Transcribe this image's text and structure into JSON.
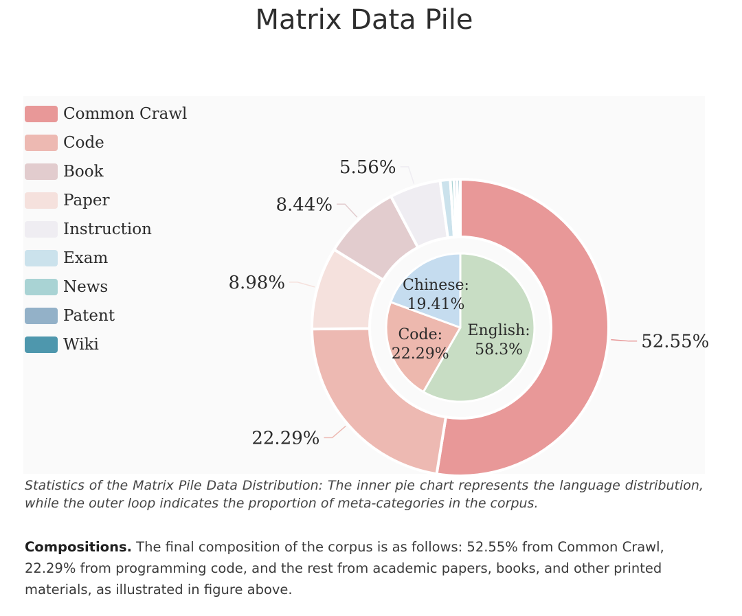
{
  "title": "Matrix Data Pile",
  "chart_data": {
    "type": "pie",
    "outer": {
      "slices": [
        {
          "label": "Common Crawl",
          "value": 52.55,
          "color": "#e89898",
          "display": "52.55%"
        },
        {
          "label": "Code",
          "value": 22.29,
          "color": "#edb9b2",
          "display": "22.29%"
        },
        {
          "label": "Paper",
          "value": 8.98,
          "color": "#f5e1dd",
          "display": "8.98%"
        },
        {
          "label": "Book",
          "value": 8.44,
          "color": "#e2ccce",
          "display": "8.44%"
        },
        {
          "label": "Instruction",
          "value": 5.56,
          "color": "#efedf2",
          "display": "5.56%"
        },
        {
          "label": "Exam",
          "value": 1.1,
          "color": "#cbe2ec",
          "display": ""
        },
        {
          "label": "News",
          "value": 0.4,
          "color": "#a9d3d4",
          "display": ""
        },
        {
          "label": "Patent",
          "value": 0.35,
          "color": "#93b1c8",
          "display": ""
        },
        {
          "label": "Wiki",
          "value": 0.33,
          "color": "#4e97ad",
          "display": ""
        }
      ]
    },
    "inner": {
      "slices": [
        {
          "label": "English:",
          "value": 58.3,
          "display": "58.3%",
          "color": "#c8ddc4"
        },
        {
          "label": "Code:",
          "value": 22.29,
          "display": "22.29%",
          "color": "#edb8ae"
        },
        {
          "label": "Chinese:",
          "value": 19.41,
          "display": "19.41%",
          "color": "#c5dcef"
        }
      ]
    },
    "legend": [
      {
        "label": "Common Crawl",
        "color": "#e89898"
      },
      {
        "label": "Code",
        "color": "#edb9b2"
      },
      {
        "label": "Book",
        "color": "#e2ccce"
      },
      {
        "label": "Paper",
        "color": "#f5e1dd"
      },
      {
        "label": "Instruction",
        "color": "#efedf2"
      },
      {
        "label": "Exam",
        "color": "#cbe2ec"
      },
      {
        "label": "News",
        "color": "#a9d3d4"
      },
      {
        "label": "Patent",
        "color": "#93b1c8"
      },
      {
        "label": "Wiki",
        "color": "#4e97ad"
      }
    ]
  },
  "caption": "Statistics of the Matrix Pile Data Distribution: The inner pie chart represents the language distribution, while the outer loop indicates the proportion of meta-categories in the corpus.",
  "compositions": {
    "heading": "Compositions.",
    "text": " The final composition of the corpus is as follows: 52.55% from Common Crawl, 22.29% from programming code, and the rest from academic papers, books, and other printed materials, as illustrated in figure above."
  }
}
